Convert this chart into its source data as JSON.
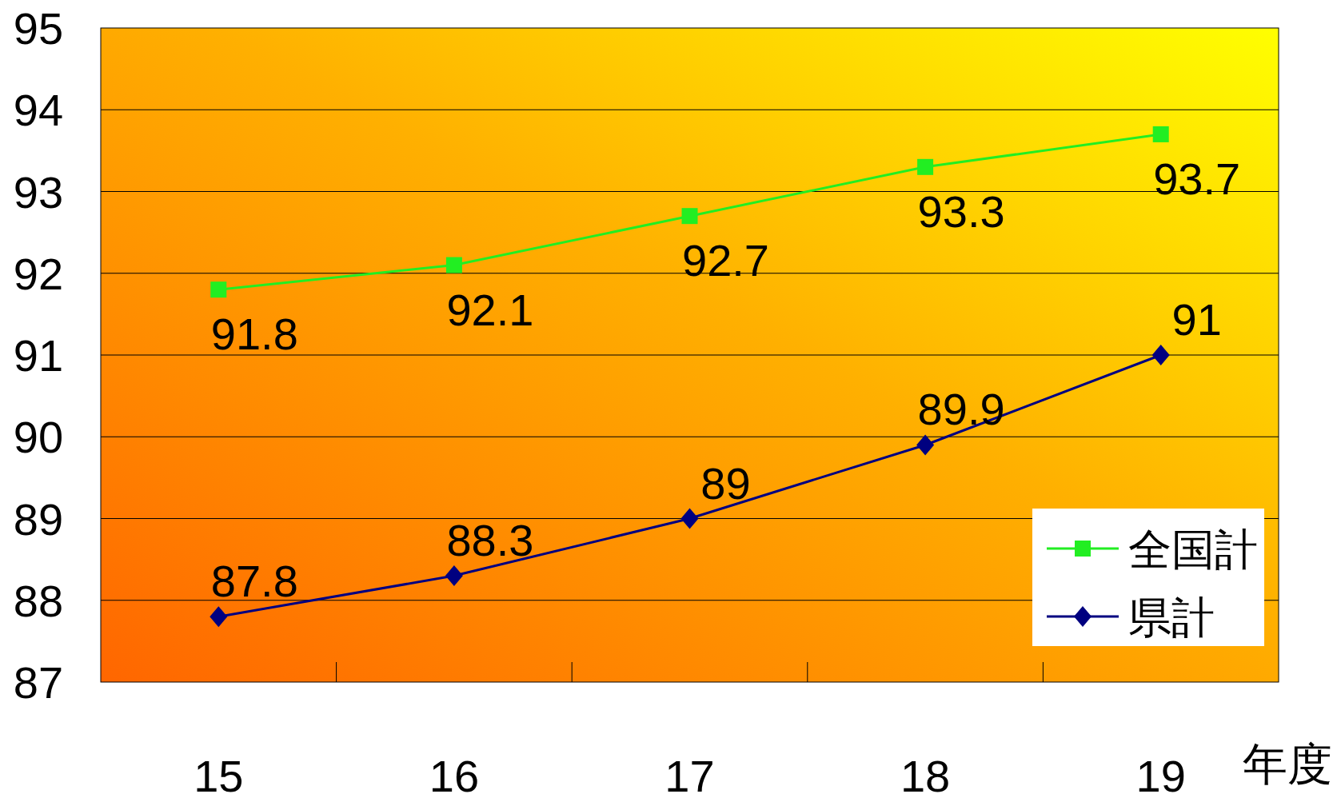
{
  "chart_data": {
    "type": "line",
    "xlabel": "年度",
    "categories": [
      "15",
      "16",
      "17",
      "18",
      "19"
    ],
    "series": [
      {
        "name": "全国計",
        "color": "#22ee22",
        "marker": "square",
        "values": [
          91.8,
          92.1,
          92.7,
          93.3,
          93.7
        ]
      },
      {
        "name": "県計",
        "color": "#000080",
        "marker": "diamond",
        "values": [
          87.8,
          88.3,
          89,
          89.9,
          91
        ]
      }
    ],
    "ylim": [
      87,
      95
    ],
    "yticks": [
      87,
      88,
      89,
      90,
      91,
      92,
      93,
      94,
      95
    ],
    "grid": "y",
    "legend": "bottom right",
    "data_labels": true
  }
}
